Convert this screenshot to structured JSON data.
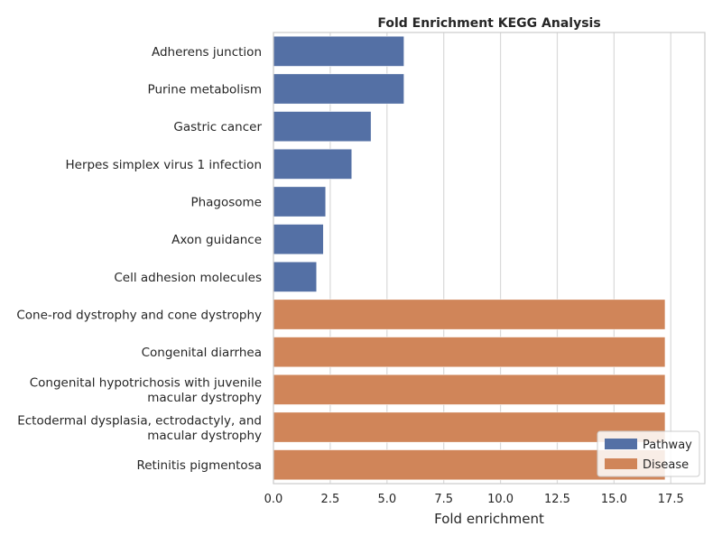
{
  "chart_data": {
    "type": "bar",
    "orientation": "horizontal",
    "title": "Fold Enrichment KEGG Analysis",
    "xlabel": "Fold enrichment",
    "ylabel": "",
    "xlim": [
      0,
      19
    ],
    "xticks": [
      0.0,
      2.5,
      5.0,
      7.5,
      10.0,
      12.5,
      15.0,
      17.5
    ],
    "xtick_labels": [
      "0.0",
      "2.5",
      "5.0",
      "7.5",
      "10.0",
      "12.5",
      "15.0",
      "17.5"
    ],
    "grid": "vertical",
    "legend_position": "bottom-right",
    "categories": [
      "Adherens junction",
      "Purine metabolism",
      "Gastric cancer",
      "Herpes simplex virus 1 infection",
      "Phagosome",
      "Axon guidance",
      "Cell adhesion molecules",
      "Cone-rod dystrophy and cone dystrophy",
      "Congenital diarrhea",
      "Congenital hypotrichosis with juvenile macular dystrophy",
      "Ectodermal dysplasia, ectrodactyly, and macular dystrophy",
      "Retinitis pigmentosa"
    ],
    "category_label_lines": [
      [
        "Adherens junction"
      ],
      [
        "Purine metabolism"
      ],
      [
        "Gastric cancer"
      ],
      [
        "Herpes simplex virus 1 infection"
      ],
      [
        "Phagosome"
      ],
      [
        "Axon guidance"
      ],
      [
        "Cell adhesion molecules"
      ],
      [
        "Cone-rod dystrophy and cone dystrophy"
      ],
      [
        "Congenital diarrhea"
      ],
      [
        "Congenital hypotrichosis with juvenile",
        "macular dystrophy"
      ],
      [
        "Ectodermal dysplasia, ectrodactyly, and",
        "macular dystrophy"
      ],
      [
        "Retinitis pigmentosa"
      ]
    ],
    "values": [
      5.75,
      5.75,
      4.3,
      3.45,
      2.3,
      2.2,
      1.9,
      17.25,
      17.25,
      17.25,
      17.25,
      17.25
    ],
    "groups": [
      "Pathway",
      "Pathway",
      "Pathway",
      "Pathway",
      "Pathway",
      "Pathway",
      "Pathway",
      "Disease",
      "Disease",
      "Disease",
      "Disease",
      "Disease"
    ],
    "series": [
      {
        "name": "Pathway",
        "color": "#5470a5"
      },
      {
        "name": "Disease",
        "color": "#d08559"
      }
    ]
  }
}
